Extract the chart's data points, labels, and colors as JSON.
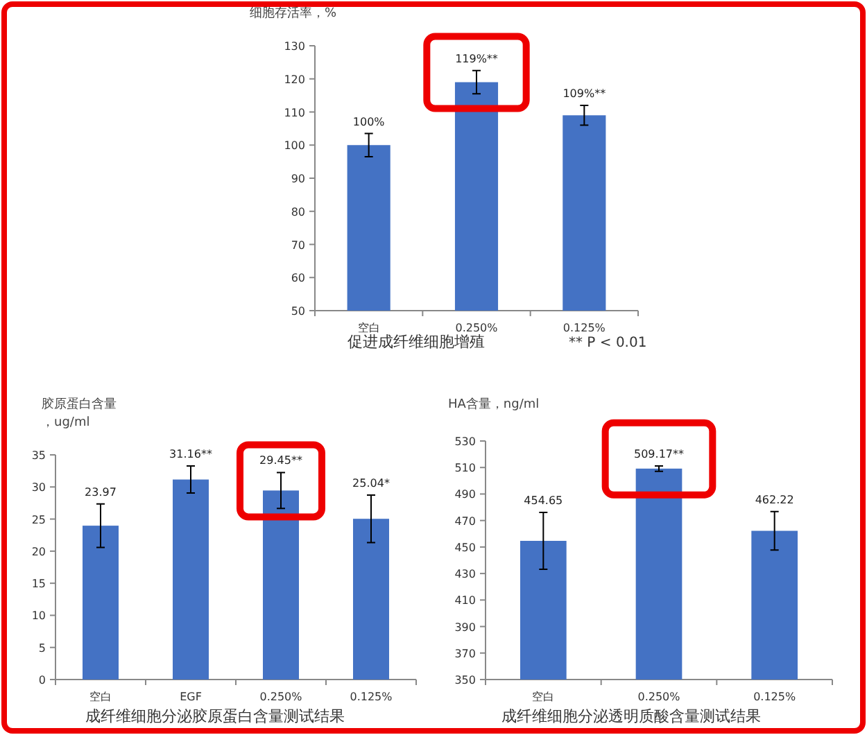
{
  "chart_data": [
    {
      "type": "bar",
      "title": "促进成纤维细胞增殖",
      "ylabel": "细胞存活率，%",
      "categories": [
        "空白",
        "0.250%",
        "0.125%"
      ],
      "values": [
        100,
        119,
        109
      ],
      "errors": [
        3.5,
        3.5,
        3
      ],
      "value_labels": [
        "100%",
        "119%**",
        "109%**"
      ],
      "color": "#4472c4",
      "ylim": [
        50,
        130
      ],
      "yticks": [
        50,
        60,
        70,
        80,
        90,
        100,
        110,
        120,
        130
      ],
      "annotations": [
        "** P < 0.01"
      ]
    },
    {
      "type": "bar",
      "title": "成纤维细胞分泌胶原蛋白含量测试结果",
      "ylabel": "胶原蛋白含量，ug/ml",
      "categories": [
        "空白",
        "EGF",
        "0.250%",
        "0.125%"
      ],
      "values": [
        23.97,
        31.16,
        29.45,
        25.04
      ],
      "errors": [
        3.4,
        2.1,
        2.8,
        3.7
      ],
      "value_labels": [
        "23.97",
        "31.16**",
        "29.45**",
        "25.04*"
      ],
      "color": "#4472c4",
      "ylim": [
        0,
        35
      ],
      "yticks": [
        0,
        5,
        10,
        15,
        20,
        25,
        30,
        35
      ]
    },
    {
      "type": "bar",
      "title": "成纤维细胞分泌透明质酸含量测试结果",
      "ylabel": "HA含量，ng/ml",
      "categories": [
        "空白",
        "0.250%",
        "0.125%"
      ],
      "values": [
        454.65,
        509.17,
        462.22
      ],
      "errors": [
        21.5,
        2,
        14.5
      ],
      "value_labels": [
        "454.65",
        "509.17**",
        "462.22"
      ],
      "color": "#4472c4",
      "ylim": [
        350,
        530
      ],
      "yticks": [
        350,
        370,
        390,
        410,
        430,
        450,
        470,
        490,
        510,
        530
      ]
    }
  ]
}
